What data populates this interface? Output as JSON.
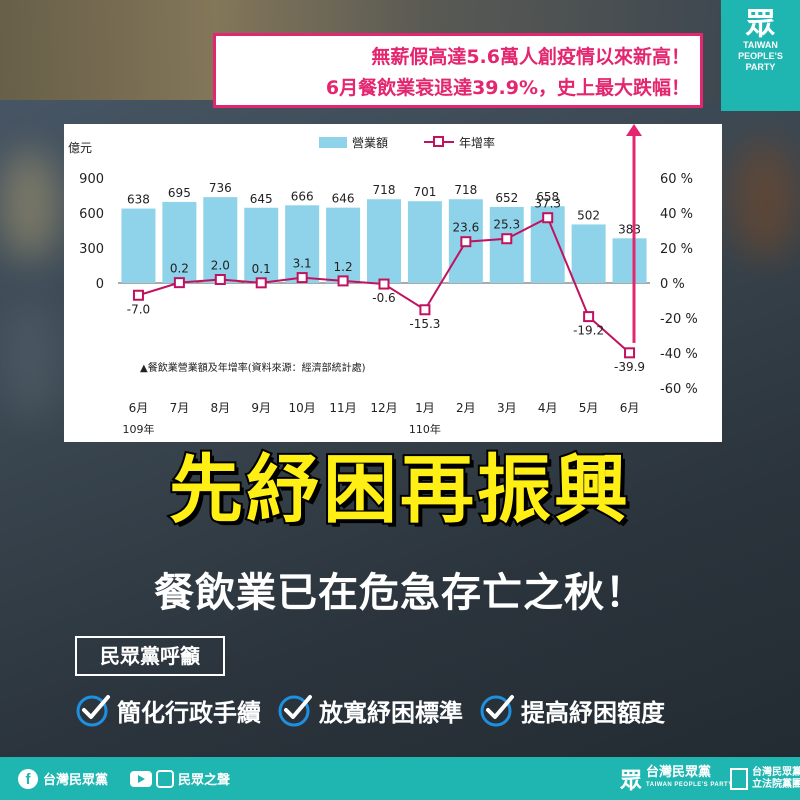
{
  "logo": {
    "mark": "眾",
    "lines": [
      "TAIWAN",
      "PEOPLE'S",
      "PARTY"
    ]
  },
  "headline": {
    "line1": "無薪假高達5.6萬人創疫情以來新高！",
    "line2": "6月餐飲業衰退達39.9%，史上最大跌幅！"
  },
  "chart_data": {
    "type": "bar",
    "unit_label": "億元",
    "legend": {
      "bar": "營業額",
      "line": "年增率"
    },
    "categories": [
      "6月",
      "7月",
      "8月",
      "9月",
      "10月",
      "11月",
      "12月",
      "1月",
      "2月",
      "3月",
      "4月",
      "5月",
      "6月"
    ],
    "year_labels": [
      {
        "index": 0,
        "text": "109年"
      },
      {
        "index": 7,
        "text": "110年"
      }
    ],
    "series": [
      {
        "name": "營業額",
        "type": "bar",
        "axis": "left",
        "values": [
          638,
          695,
          736,
          645,
          666,
          646,
          718,
          701,
          718,
          652,
          658,
          502,
          383
        ]
      },
      {
        "name": "年增率",
        "type": "line",
        "axis": "right",
        "values": [
          -7.0,
          0.2,
          2.0,
          0.1,
          3.1,
          1.2,
          -0.6,
          -15.3,
          23.6,
          25.3,
          37.3,
          -19.2,
          -39.9
        ]
      }
    ],
    "bar_labels": [
      "638",
      "695",
      "736",
      "645",
      "666",
      "646",
      "718",
      "701",
      "718",
      "652",
      "658",
      "502",
      "383"
    ],
    "line_labels": [
      "-7.0",
      "0.2",
      "2.0",
      "0.1",
      "3.1",
      "1.2",
      "-0.6",
      "-15.3",
      "23.6",
      "25.3",
      "37.3",
      "-19.2",
      "-39.9"
    ],
    "y_left": {
      "min": 0,
      "max": 900,
      "ticks": [
        "900",
        "600",
        "300",
        "0"
      ],
      "tick_values": [
        900,
        600,
        300,
        0
      ]
    },
    "y_right": {
      "min": -60,
      "max": 60,
      "ticks": [
        "60 %",
        "40 %",
        "20 %",
        "0 %",
        "-20 %",
        "-40 %",
        "-60 %"
      ],
      "tick_values": [
        60,
        40,
        20,
        0,
        -20,
        -40,
        -60
      ]
    },
    "caption": "▲餐飲業營業額及年增率(資料來源：經濟部統計處)",
    "grid": false,
    "legend_position": "top",
    "colors": {
      "bar": "#8fd3ea",
      "line": "#c0125f",
      "text": "#222222",
      "arrow": "#e3266f"
    }
  },
  "main_title": "先紓困再振興",
  "sub_title": "餐飲業已在危急存亡之秋！",
  "call_label": "民眾黨呼籲",
  "checks": [
    "簡化行政手續",
    "放寬紓困標準",
    "提高紓困額度"
  ],
  "footer": {
    "facebook": "台灣民眾黨",
    "youtube_brand": "民眾之聲",
    "party_name": "台灣民眾黨",
    "party_en": "TAIWAN PEOPLE'S PARTY",
    "caucus_line1": "台灣民眾黨",
    "caucus_line2": "立法院黨團"
  },
  "colors": {
    "brand": "#1fb5b0",
    "accent": "#e3266f",
    "title_yellow": "#ffef14"
  }
}
